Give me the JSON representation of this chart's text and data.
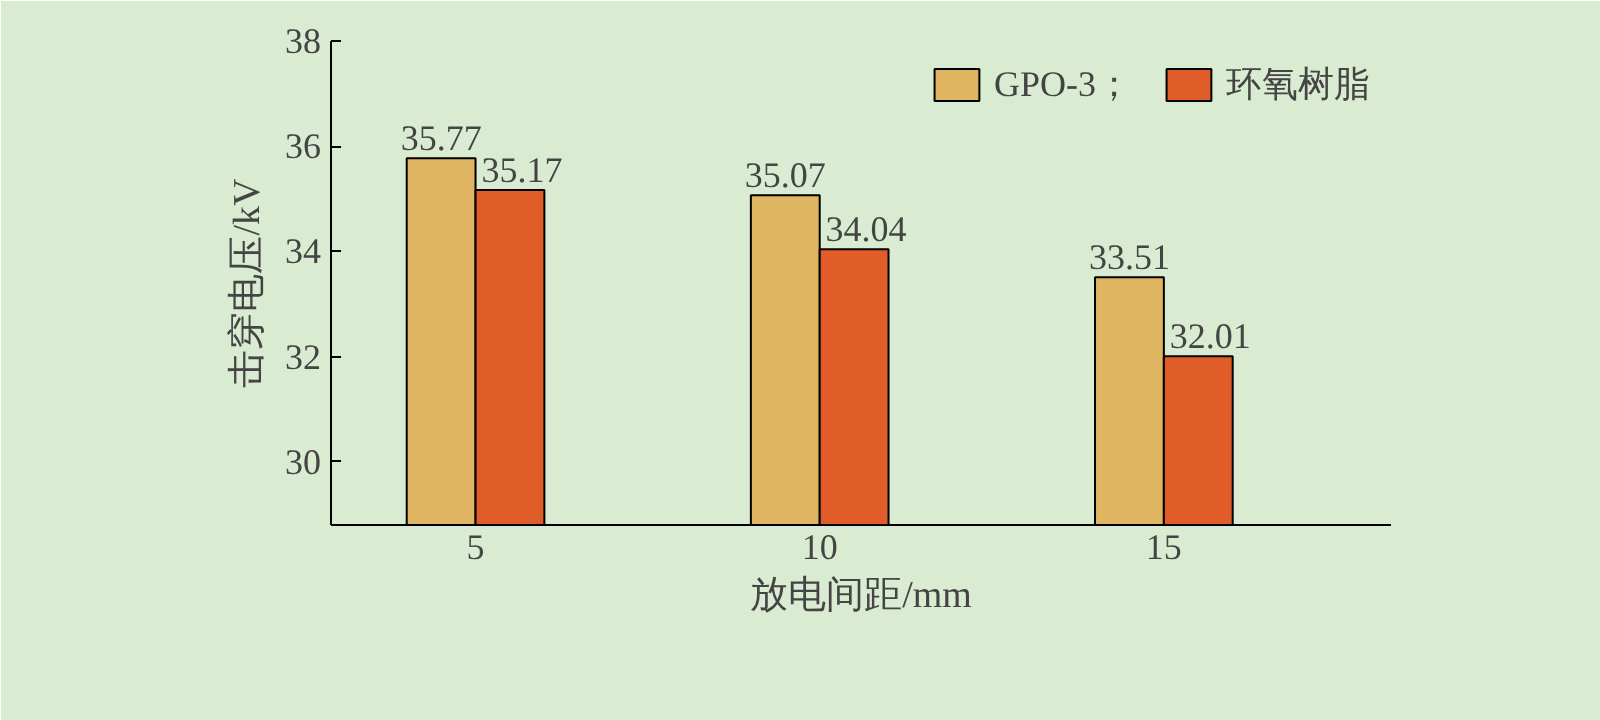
{
  "chart_data": {
    "type": "bar",
    "xlabel": "放电间距/mm",
    "ylabel": "击穿电压/kV",
    "categories": [
      "5",
      "10",
      "15"
    ],
    "series": [
      {
        "name": "GPO-3；",
        "color": "#dfb562",
        "values": [
          35.77,
          35.07,
          33.51
        ]
      },
      {
        "name": "环氧树脂",
        "color": "#e05c28",
        "values": [
          35.17,
          34.04,
          32.01
        ]
      }
    ],
    "ylim": [
      28.8,
      38
    ],
    "yticks": [
      30,
      32,
      34,
      36,
      38
    ],
    "data_labels": true,
    "legend": "top right",
    "grid": false
  }
}
